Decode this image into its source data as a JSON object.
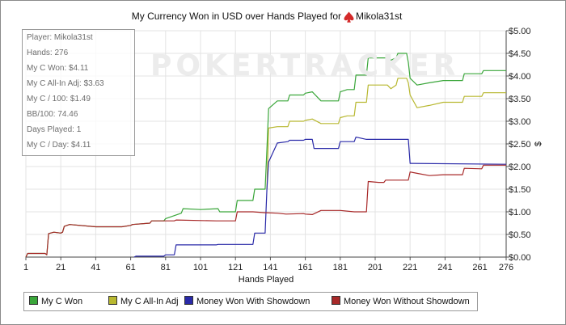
{
  "chart_data": {
    "type": "line",
    "title": "My Currency Won in USD over Hands Played for",
    "player_name": "Mikola31st",
    "watermark": "POKERTRACKER",
    "xlabel": "Hands Played",
    "ylabel": "$",
    "xlim": [
      1,
      276
    ],
    "ylim": [
      0,
      5
    ],
    "x_ticks": [
      1,
      21,
      41,
      61,
      81,
      101,
      121,
      141,
      161,
      181,
      201,
      221,
      241,
      261,
      276
    ],
    "y_ticks": [
      "$0.00",
      "$0.50",
      "$1.00",
      "$1.50",
      "$2.00",
      "$2.50",
      "$3.00",
      "$3.50",
      "$4.00",
      "$4.50",
      "$5.00"
    ],
    "y_tick_values": [
      0,
      0.5,
      1,
      1.5,
      2,
      2.5,
      3,
      3.5,
      4,
      4.5,
      5
    ],
    "y_axis_side": "right",
    "grid": true,
    "legend_position": "bottom",
    "series": [
      {
        "name": "My C Won",
        "color": "#3aa63a",
        "points": [
          [
            1,
            0
          ],
          [
            2,
            0.08
          ],
          [
            12,
            0.08
          ],
          [
            13,
            0.05
          ],
          [
            14,
            0.52
          ],
          [
            17,
            0.55
          ],
          [
            21,
            0.53
          ],
          [
            22,
            0.55
          ],
          [
            23,
            0.68
          ],
          [
            26,
            0.72
          ],
          [
            41,
            0.67
          ],
          [
            50,
            0.67
          ],
          [
            56,
            0.67
          ],
          [
            61,
            0.7
          ],
          [
            62,
            0.72
          ],
          [
            72,
            0.75
          ],
          [
            73,
            0.8
          ],
          [
            80,
            0.8
          ],
          [
            81,
            0.85
          ],
          [
            90,
            0.97
          ],
          [
            91,
            1.07
          ],
          [
            101,
            1.05
          ],
          [
            111,
            1.07
          ],
          [
            112,
            1.0
          ],
          [
            121,
            1.0
          ],
          [
            122,
            1.25
          ],
          [
            131,
            1.25
          ],
          [
            132,
            1.5
          ],
          [
            138,
            1.5
          ],
          [
            139,
            2.38
          ],
          [
            140,
            3.28
          ],
          [
            145,
            3.45
          ],
          [
            151,
            3.45
          ],
          [
            152,
            3.58
          ],
          [
            160,
            3.58
          ],
          [
            161,
            3.62
          ],
          [
            165,
            3.65
          ],
          [
            170,
            3.45
          ],
          [
            180,
            3.45
          ],
          [
            181,
            3.65
          ],
          [
            185,
            3.7
          ],
          [
            189,
            3.7
          ],
          [
            190,
            4.02
          ],
          [
            196,
            4.02
          ],
          [
            197,
            4.4
          ],
          [
            203,
            4.4
          ],
          [
            208,
            4.4
          ],
          [
            210,
            4.35
          ],
          [
            213,
            4.4
          ],
          [
            214,
            4.5
          ],
          [
            219,
            4.5
          ],
          [
            220,
            4.3
          ],
          [
            221,
            3.95
          ],
          [
            225,
            3.8
          ],
          [
            232,
            3.85
          ],
          [
            240,
            3.9
          ],
          [
            251,
            3.9
          ],
          [
            252,
            4.05
          ],
          [
            262,
            4.05
          ],
          [
            263,
            4.12
          ],
          [
            276,
            4.12
          ]
        ]
      },
      {
        "name": "My C All-In Adj",
        "color": "#b8b830",
        "points": [
          [
            139,
            1.5
          ],
          [
            140,
            2.85
          ],
          [
            145,
            2.88
          ],
          [
            151,
            2.88
          ],
          [
            152,
            3.0
          ],
          [
            160,
            3.0
          ],
          [
            161,
            3.02
          ],
          [
            165,
            3.05
          ],
          [
            170,
            2.95
          ],
          [
            180,
            2.95
          ],
          [
            181,
            3.08
          ],
          [
            185,
            3.12
          ],
          [
            189,
            3.12
          ],
          [
            190,
            3.42
          ],
          [
            196,
            3.42
          ],
          [
            197,
            3.8
          ],
          [
            203,
            3.8
          ],
          [
            208,
            3.8
          ],
          [
            210,
            3.72
          ],
          [
            213,
            3.8
          ],
          [
            214,
            3.95
          ],
          [
            219,
            3.95
          ],
          [
            220,
            3.85
          ],
          [
            221,
            3.58
          ],
          [
            225,
            3.3
          ],
          [
            232,
            3.35
          ],
          [
            240,
            3.42
          ],
          [
            251,
            3.42
          ],
          [
            252,
            3.55
          ],
          [
            262,
            3.55
          ],
          [
            263,
            3.63
          ],
          [
            276,
            3.63
          ]
        ]
      },
      {
        "name": "Money Won With Showdown",
        "color": "#2929a8",
        "points": [
          [
            63,
            0
          ],
          [
            64,
            0.02
          ],
          [
            80,
            0.02
          ],
          [
            81,
            0.05
          ],
          [
            86,
            0.05
          ],
          [
            87,
            0.27
          ],
          [
            110,
            0.27
          ],
          [
            111,
            0.28
          ],
          [
            131,
            0.28
          ],
          [
            132,
            0.53
          ],
          [
            138,
            0.53
          ],
          [
            139,
            1.5
          ],
          [
            140,
            2.1
          ],
          [
            145,
            2.52
          ],
          [
            151,
            2.55
          ],
          [
            152,
            2.58
          ],
          [
            160,
            2.58
          ],
          [
            161,
            2.6
          ],
          [
            165,
            2.6
          ],
          [
            166,
            2.4
          ],
          [
            180,
            2.4
          ],
          [
            181,
            2.55
          ],
          [
            189,
            2.55
          ],
          [
            190,
            2.65
          ],
          [
            196,
            2.6
          ],
          [
            206,
            2.6
          ],
          [
            220,
            2.6
          ],
          [
            221,
            2.07
          ],
          [
            276,
            2.05
          ]
        ]
      },
      {
        "name": "Money Won Without Showdown",
        "color": "#a82929",
        "points": [
          [
            1,
            0
          ],
          [
            2,
            0.08
          ],
          [
            12,
            0.08
          ],
          [
            13,
            0.05
          ],
          [
            14,
            0.52
          ],
          [
            17,
            0.55
          ],
          [
            21,
            0.53
          ],
          [
            22,
            0.55
          ],
          [
            23,
            0.68
          ],
          [
            26,
            0.72
          ],
          [
            41,
            0.67
          ],
          [
            50,
            0.67
          ],
          [
            56,
            0.67
          ],
          [
            61,
            0.7
          ],
          [
            62,
            0.72
          ],
          [
            72,
            0.75
          ],
          [
            73,
            0.8
          ],
          [
            80,
            0.8
          ],
          [
            81,
            0.8
          ],
          [
            86,
            0.8
          ],
          [
            87,
            0.82
          ],
          [
            110,
            0.8
          ],
          [
            111,
            0.8
          ],
          [
            121,
            0.8
          ],
          [
            122,
            1.0
          ],
          [
            131,
            1.0
          ],
          [
            138,
            0.98
          ],
          [
            139,
            0.98
          ],
          [
            145,
            0.97
          ],
          [
            150,
            0.95
          ],
          [
            160,
            0.96
          ],
          [
            161,
            0.95
          ],
          [
            165,
            0.94
          ],
          [
            170,
            1.03
          ],
          [
            180,
            1.03
          ],
          [
            181,
            1.03
          ],
          [
            189,
            1.0
          ],
          [
            196,
            1.0
          ],
          [
            197,
            1.67
          ],
          [
            203,
            1.65
          ],
          [
            206,
            1.65
          ],
          [
            207,
            1.7
          ],
          [
            220,
            1.7
          ],
          [
            221,
            1.88
          ],
          [
            225,
            1.85
          ],
          [
            232,
            1.8
          ],
          [
            240,
            1.82
          ],
          [
            251,
            1.82
          ],
          [
            252,
            1.96
          ],
          [
            262,
            1.95
          ],
          [
            263,
            2.03
          ],
          [
            276,
            2.03
          ]
        ]
      }
    ]
  },
  "stats": [
    "Player: Mikola31st",
    "Hands: 276",
    "My C Won: $4.11",
    "My C All-In Adj: $3.63",
    "My C / 100: $1.49",
    "BB/100: 74.46",
    "Days Played: 1",
    "My C / Day: $4.11"
  ]
}
